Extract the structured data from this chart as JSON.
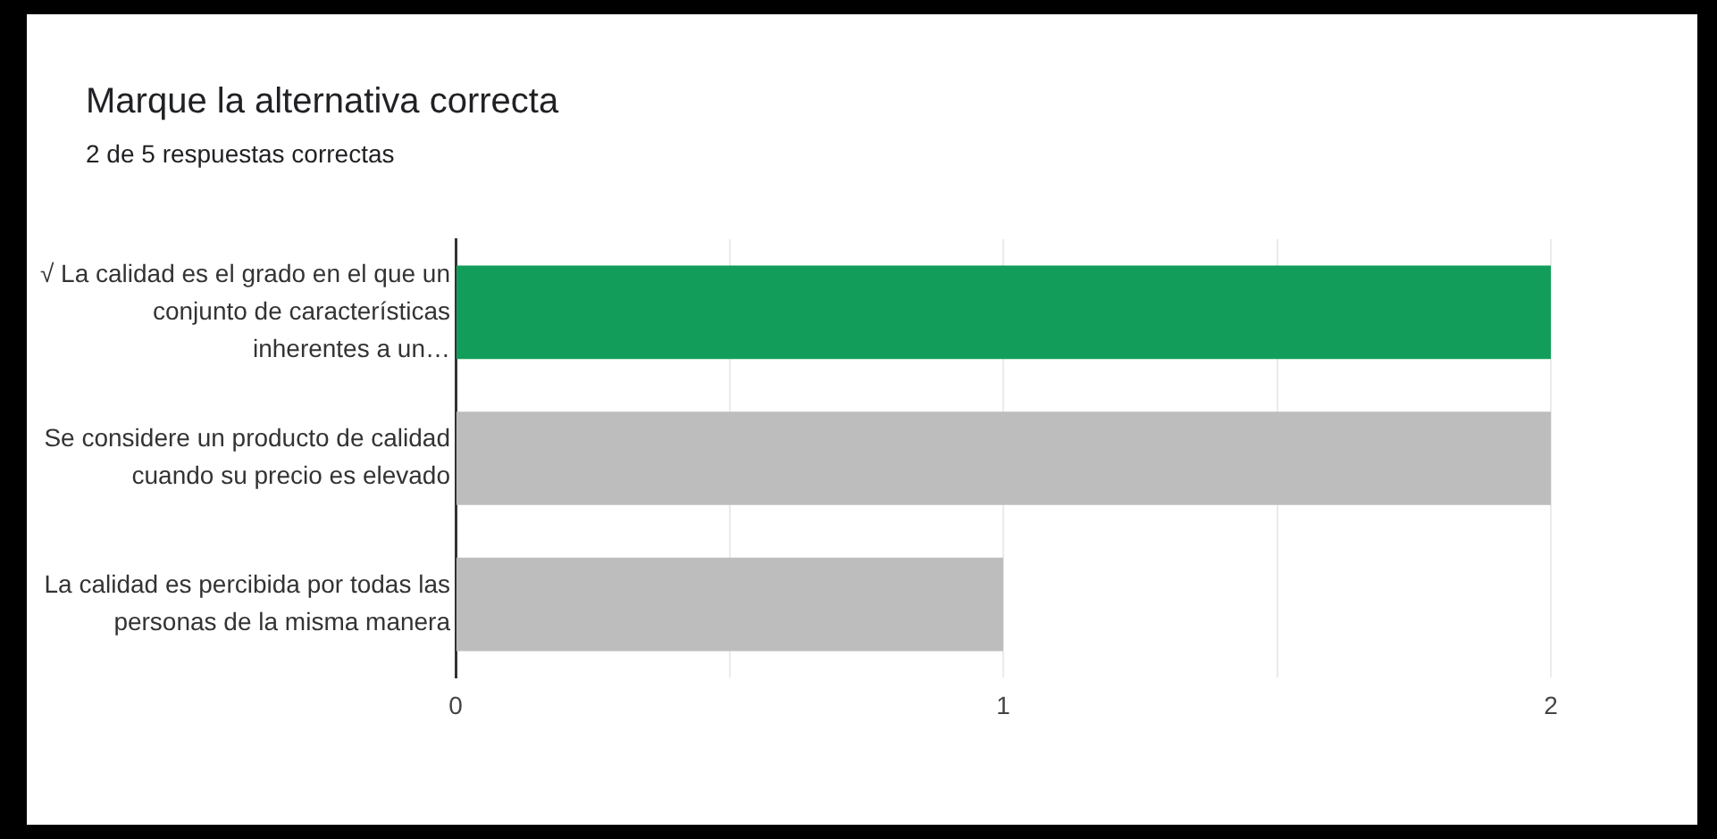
{
  "chart_data": {
    "type": "bar",
    "orientation": "horizontal",
    "title": "Marque la alternativa correcta",
    "subtitle": "2 de 5 respuestas correctas",
    "categories": [
      "√ La calidad es el grado en el que un conjunto de características inherentes a un…",
      "Se considere un producto de calidad cuando su precio es elevado",
      "La calidad es percibida por todas las personas de la misma manera"
    ],
    "values": [
      2,
      2,
      1
    ],
    "colors": [
      "#129e5a",
      "#bdbdbd",
      "#bdbdbd"
    ],
    "xlim": [
      0,
      2
    ],
    "xticks": [
      0,
      {
        "value": 0.5,
        "label": null
      },
      1,
      {
        "value": 1.5,
        "label": null
      },
      2
    ],
    "grid": "x",
    "legend": false
  }
}
